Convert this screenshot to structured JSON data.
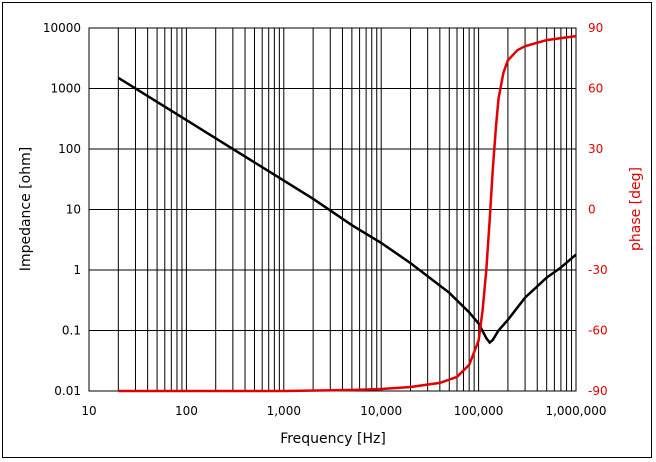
{
  "chart_data": {
    "type": "line",
    "xlabel": "Frequency [Hz]",
    "ylabel": "Impedance [ohm]",
    "y2label": "phase [deg]",
    "xscale": "log",
    "yscale": "log",
    "xlim": [
      10,
      1000000
    ],
    "ylim": [
      0.01,
      10000
    ],
    "y2lim": [
      -90,
      90
    ],
    "grid": true,
    "x_ticks": [
      "10",
      "100",
      "1,000",
      "10,000",
      "100,000",
      "1,000,000"
    ],
    "y_ticks": [
      "0.01",
      "0.1",
      "1",
      "10",
      "100",
      "1000",
      "10000"
    ],
    "y2_ticks": [
      "-90",
      "-60",
      "-30",
      "0",
      "30",
      "60",
      "90"
    ],
    "colors": {
      "impedance": "#000000",
      "phase": "#e00000",
      "grid": "#000000"
    },
    "series": [
      {
        "axis": "left",
        "x": [
          20,
          50,
          100,
          200,
          500,
          1000,
          2000,
          5000,
          10000,
          20000,
          50000,
          80000,
          100000,
          120000,
          130000,
          140000,
          160000,
          200000,
          300000,
          500000,
          700000,
          1000000
        ],
        "values": [
          1500,
          600,
          300,
          150,
          60,
          30,
          15,
          5.5,
          2.8,
          1.3,
          0.42,
          0.2,
          0.13,
          0.075,
          0.063,
          0.07,
          0.1,
          0.15,
          0.35,
          0.75,
          1.1,
          1.8
        ]
      },
      {
        "axis": "right",
        "x": [
          20,
          100,
          1000,
          5000,
          10000,
          20000,
          40000,
          60000,
          80000,
          100000,
          110000,
          120000,
          130000,
          140000,
          150000,
          160000,
          180000,
          200000,
          250000,
          300000,
          500000,
          700000,
          1000000
        ],
        "values": [
          -90,
          -90,
          -90,
          -89.5,
          -89,
          -88,
          -86,
          -83,
          -77,
          -65,
          -50,
          -30,
          -5,
          20,
          40,
          55,
          68,
          74,
          79,
          81,
          84,
          85,
          86
        ]
      }
    ]
  }
}
